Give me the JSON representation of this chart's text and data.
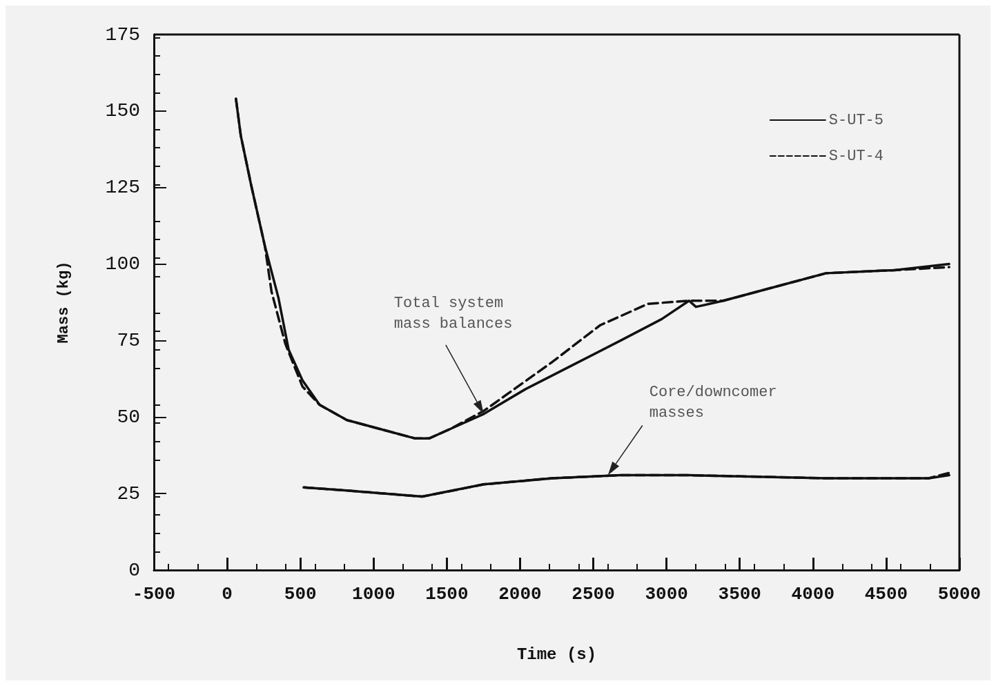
{
  "chart_data": {
    "type": "line",
    "xlabel": "Time (s)",
    "ylabel": "Mass (kg)",
    "xlim": [
      -500,
      5000
    ],
    "xticks": [
      -500,
      0,
      500,
      1000,
      1500,
      2000,
      2500,
      3000,
      3500,
      4000,
      4500,
      5000
    ],
    "ylim": [
      0,
      175
    ],
    "yticks": [
      0,
      25,
      50,
      75,
      100,
      125,
      150,
      175
    ],
    "grid": false,
    "legend": "top right",
    "marker": "none",
    "series": [
      {
        "name": "S-UT-5",
        "color": "#111111",
        "line_style": "solid",
        "x": [
          60,
          93,
          163,
          257,
          350,
          420,
          514,
          631,
          818,
          1051,
          1285,
          1378,
          1519,
          1752,
          2033,
          2360,
          2687,
          2967,
          3154,
          3201,
          3388,
          3621,
          4089,
          4556,
          4930
        ],
        "values": [
          154,
          142,
          126,
          106,
          89,
          72,
          62,
          54,
          49,
          46,
          43,
          43,
          46,
          51,
          59,
          67,
          75,
          82,
          88,
          86,
          88,
          91,
          97,
          98,
          100
        ]
      },
      {
        "name": "S-UT-4",
        "color": "#111111",
        "line_style": "dashed",
        "x": [
          60,
          93,
          163,
          257,
          303,
          397,
          514,
          631,
          818,
          1051,
          1285,
          1378,
          1519,
          1752,
          2220,
          2547,
          2874,
          3154,
          3388,
          3621,
          4089,
          4556,
          4930
        ],
        "values": [
          154,
          142,
          126,
          106,
          91,
          74,
          60,
          54,
          49,
          46,
          43,
          43,
          46,
          52,
          68,
          80,
          87,
          88,
          88,
          91,
          97,
          98,
          99
        ]
      },
      {
        "color": "#111111",
        "line_style": "solid",
        "x": [
          523,
          818,
          1332,
          1752,
          2220,
          2687,
          3154,
          4089,
          4790,
          4930
        ],
        "values": [
          27,
          26,
          24,
          28,
          30,
          31,
          31,
          30,
          30,
          31
        ]
      },
      {
        "color": "#111111",
        "line_style": "dashed",
        "x": [
          523,
          818,
          1332,
          1752,
          2220,
          2687,
          3154,
          4089,
          4790,
          4950
        ],
        "values": [
          27,
          26,
          24,
          28,
          30,
          31,
          31,
          30,
          30,
          32
        ]
      }
    ],
    "annotations": [
      "Total system\nmass balances",
      "Core/downcomer\nmasses"
    ]
  }
}
